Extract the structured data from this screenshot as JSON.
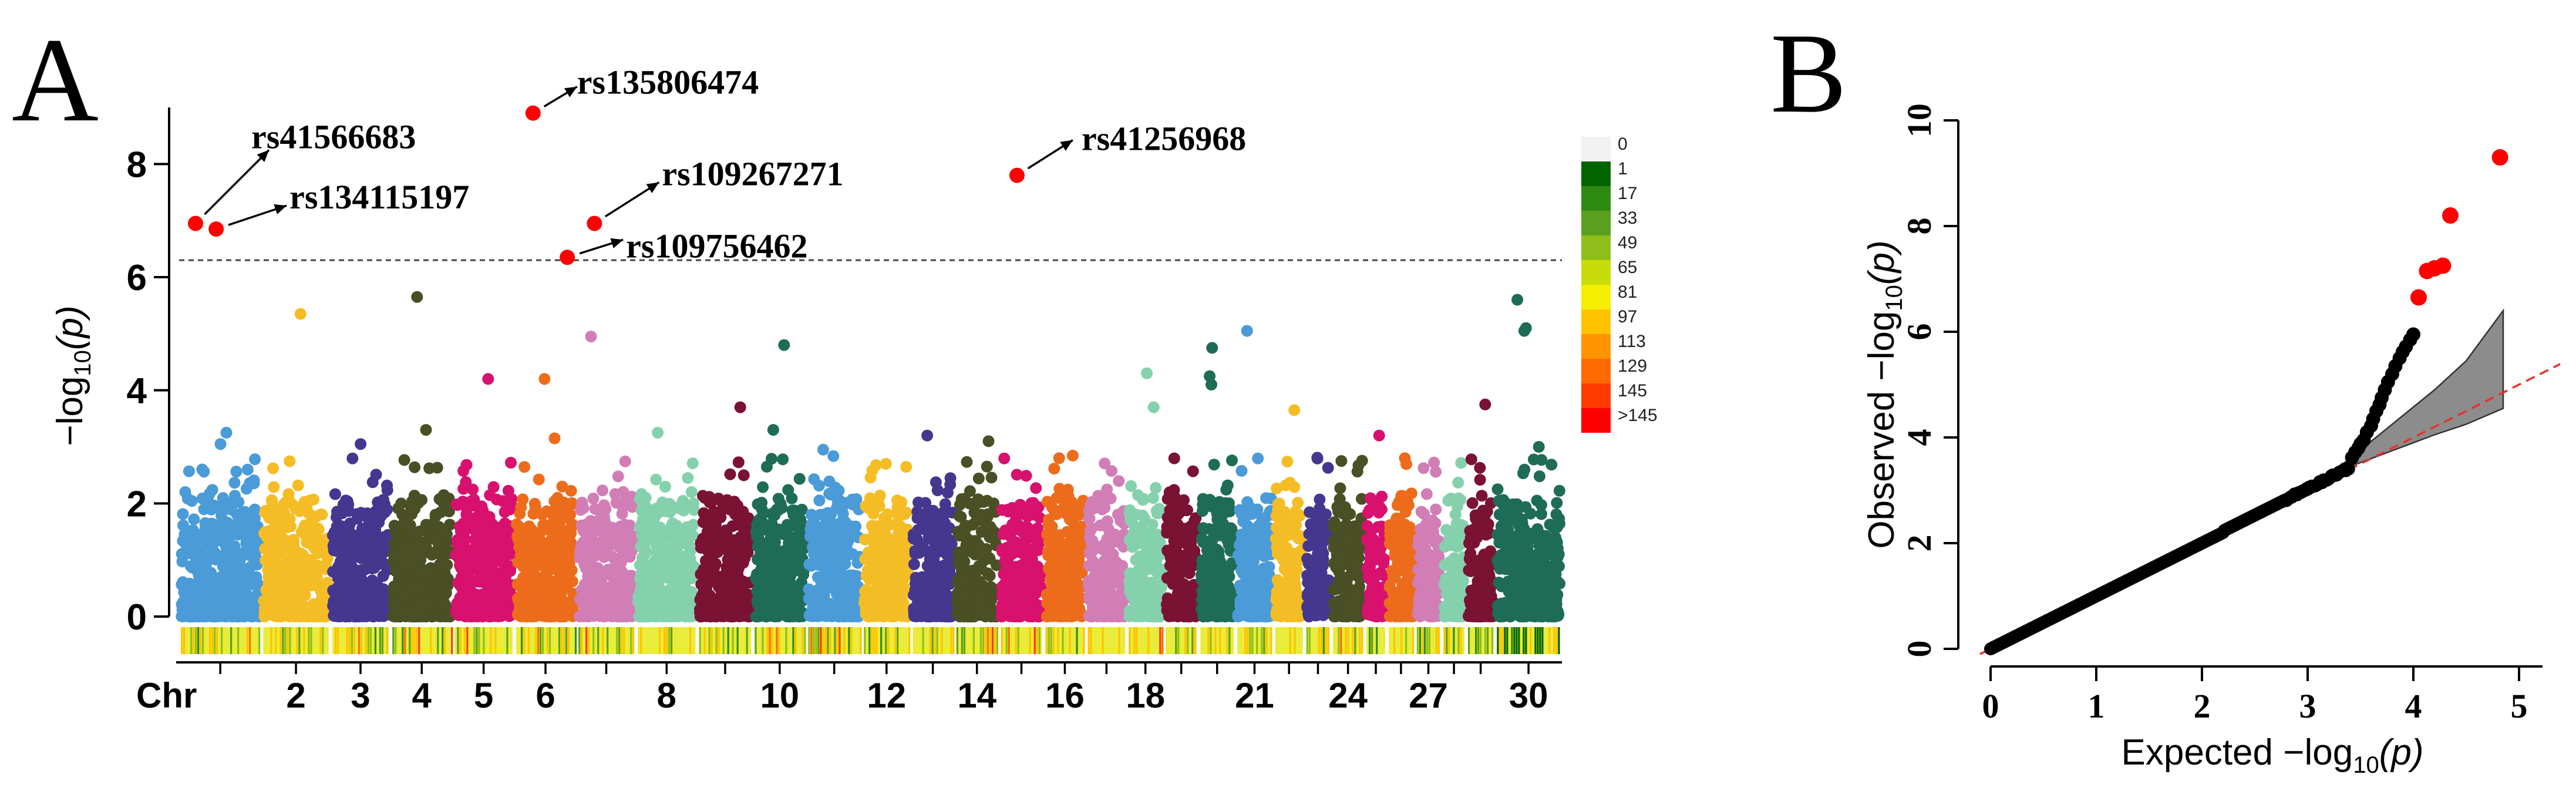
{
  "chart_data": [
    {
      "type": "scatter",
      "panel_label": "A",
      "title": "",
      "xlabel": "Chr",
      "ylabel_prefix": "−log",
      "ylabel_sub": "10",
      "ylabel_suffix": "(p)",
      "ylim": [
        0,
        9
      ],
      "yticks": [
        0,
        2,
        4,
        6,
        8
      ],
      "threshold": 6.3,
      "chromosomes": [
        {
          "chr": 1,
          "label": "",
          "width": 1.85,
          "color": "#4a9bd8"
        },
        {
          "chr": 2,
          "label": "2",
          "width": 1.55,
          "color": "#f5bd25"
        },
        {
          "chr": 3,
          "label": "3",
          "width": 1.35,
          "color": "#45378f"
        },
        {
          "chr": 4,
          "label": "4",
          "width": 1.4,
          "color": "#4a4f25"
        },
        {
          "chr": 5,
          "label": "5",
          "width": 1.38,
          "color": "#d8106e"
        },
        {
          "chr": 6,
          "label": "6",
          "width": 1.4,
          "color": "#ed6c1b"
        },
        {
          "chr": 7,
          "label": "",
          "width": 1.33,
          "color": "#d17eb7"
        },
        {
          "chr": 8,
          "label": "8",
          "width": 1.38,
          "color": "#85d1ad"
        },
        {
          "chr": 9,
          "label": "",
          "width": 1.25,
          "color": "#7a1233"
        },
        {
          "chr": 10,
          "label": "10",
          "width": 1.2,
          "color": "#1f6c56"
        },
        {
          "chr": 11,
          "label": "",
          "width": 1.25,
          "color": "#4a9bd8"
        },
        {
          "chr": 12,
          "label": "12",
          "width": 1.1,
          "color": "#f5bd25"
        },
        {
          "chr": 13,
          "label": "",
          "width": 0.98,
          "color": "#45378f"
        },
        {
          "chr": 14,
          "label": "14",
          "width": 1.0,
          "color": "#4a4f25"
        },
        {
          "chr": 15,
          "label": "",
          "width": 1.0,
          "color": "#d8106e"
        },
        {
          "chr": 16,
          "label": "16",
          "width": 0.95,
          "color": "#ed6c1b"
        },
        {
          "chr": 17,
          "label": "",
          "width": 0.92,
          "color": "#d17eb7"
        },
        {
          "chr": 18,
          "label": "18",
          "width": 0.83,
          "color": "#85d1ad"
        },
        {
          "chr": 19,
          "label": "",
          "width": 0.78,
          "color": "#7a1233"
        },
        {
          "chr": 20,
          "label": "",
          "width": 0.83,
          "color": "#1f6c56"
        },
        {
          "chr": 21,
          "label": "21",
          "width": 0.85,
          "color": "#4a9bd8"
        },
        {
          "chr": 22,
          "label": "",
          "width": 0.7,
          "color": "#f5bd25"
        },
        {
          "chr": 23,
          "label": "",
          "width": 0.6,
          "color": "#45378f"
        },
        {
          "chr": 24,
          "label": "24",
          "width": 0.75,
          "color": "#4a4f25"
        },
        {
          "chr": 25,
          "label": "",
          "width": 0.5,
          "color": "#d8106e"
        },
        {
          "chr": 26,
          "label": "",
          "width": 0.63,
          "color": "#ed6c1b"
        },
        {
          "chr": 27,
          "label": "27",
          "width": 0.6,
          "color": "#d17eb7"
        },
        {
          "chr": 28,
          "label": "",
          "width": 0.55,
          "color": "#85d1ad"
        },
        {
          "chr": 29,
          "label": "",
          "width": 0.65,
          "color": "#7a1233"
        },
        {
          "chr": 30,
          "label": "30",
          "width": 1.5,
          "color": "#1f6c56"
        }
      ],
      "noise_extra_points": [
        {
          "chr": 1,
          "y": 3.05
        },
        {
          "chr": 1,
          "y": 3.25
        },
        {
          "chr": 2,
          "y": 5.35
        },
        {
          "chr": 3,
          "y": 3.05
        },
        {
          "chr": 4,
          "y": 5.65
        },
        {
          "chr": 4,
          "y": 3.3
        },
        {
          "chr": 5,
          "y": 4.2
        },
        {
          "chr": 6,
          "y": 4.2
        },
        {
          "chr": 6,
          "y": 3.15
        },
        {
          "chr": 7,
          "y": 4.95
        },
        {
          "chr": 8,
          "y": 3.25
        },
        {
          "chr": 9,
          "y": 3.7
        },
        {
          "chr": 10,
          "y": 4.8
        },
        {
          "chr": 10,
          "y": 3.3
        },
        {
          "chr": 11,
          "y": 2.95
        },
        {
          "chr": 13,
          "y": 3.2
        },
        {
          "chr": 14,
          "y": 3.1
        },
        {
          "chr": 16,
          "y": 2.8
        },
        {
          "chr": 18,
          "y": 4.3
        },
        {
          "chr": 18,
          "y": 3.7
        },
        {
          "chr": 20,
          "y": 4.75
        },
        {
          "chr": 20,
          "y": 4.25
        },
        {
          "chr": 20,
          "y": 4.1
        },
        {
          "chr": 21,
          "y": 5.05
        },
        {
          "chr": 22,
          "y": 3.65
        },
        {
          "chr": 24,
          "y": 2.75
        },
        {
          "chr": 25,
          "y": 3.2
        },
        {
          "chr": 26,
          "y": 2.8
        },
        {
          "chr": 29,
          "y": 3.75
        },
        {
          "chr": 30,
          "y": 5.1
        },
        {
          "chr": 30,
          "y": 5.05
        },
        {
          "chr": 30,
          "y": 5.6
        },
        {
          "chr": 30,
          "y": 3.0
        }
      ],
      "significant_snps": [
        {
          "name": "rs41566683",
          "chr": 1,
          "pos": 0.2,
          "y": 6.95
        },
        {
          "name": "rs134115197",
          "chr": 1,
          "pos": 0.45,
          "y": 6.85
        },
        {
          "name": "rs135806474",
          "chr": 6,
          "pos": 0.3,
          "y": 8.9
        },
        {
          "name": "rs109267271",
          "chr": 7,
          "pos": 0.3,
          "y": 6.95
        },
        {
          "name": "rs109756462",
          "chr": 6,
          "pos": 0.85,
          "y": 6.35
        },
        {
          "name": "rs41256968",
          "chr": 15,
          "pos": 0.4,
          "y": 7.8
        }
      ],
      "legend_title": "",
      "legend": [
        "0",
        "1",
        "17",
        "33",
        "49",
        "65",
        "81",
        "97",
        "113",
        "129",
        "145",
        ">145"
      ],
      "legend_colors": [
        "#f2f2f2",
        "#006400",
        "#2f8a12",
        "#5aa01e",
        "#8fbe1a",
        "#c8dc0a",
        "#f4ee00",
        "#ffc300",
        "#ff9400",
        "#ff6a00",
        "#ff3b00",
        "#ff0000"
      ]
    },
    {
      "type": "scatter",
      "panel_label": "B",
      "xlabel_prefix": "Expected  −log",
      "xlabel_sub": "10",
      "xlabel_suffix": "(p)",
      "ylabel_prefix": "Observed  −log",
      "ylabel_sub": "10",
      "ylabel_suffix": "(p)",
      "xlim": [
        0,
        5
      ],
      "ylim": [
        0,
        10
      ],
      "xticks": [
        0,
        1,
        2,
        3,
        4,
        5
      ],
      "yticks": [
        0,
        2,
        4,
        6,
        8,
        10
      ],
      "linear_range": [
        0,
        3.4
      ],
      "tail_points": [
        [
          3.42,
          3.62
        ],
        [
          3.45,
          3.72
        ],
        [
          3.48,
          3.8
        ],
        [
          3.5,
          3.88
        ],
        [
          3.53,
          3.95
        ],
        [
          3.56,
          4.1
        ],
        [
          3.6,
          4.22
        ],
        [
          3.62,
          4.35
        ],
        [
          3.65,
          4.5
        ],
        [
          3.68,
          4.62
        ],
        [
          3.7,
          4.75
        ],
        [
          3.73,
          4.9
        ],
        [
          3.76,
          5.05
        ],
        [
          3.8,
          5.2
        ],
        [
          3.83,
          5.35
        ],
        [
          3.87,
          5.5
        ],
        [
          3.9,
          5.62
        ],
        [
          3.93,
          5.72
        ],
        [
          3.97,
          5.85
        ],
        [
          4.0,
          5.95
        ]
      ],
      "significant_points": [
        [
          4.05,
          6.65
        ],
        [
          4.13,
          7.15
        ],
        [
          4.2,
          7.2
        ],
        [
          4.28,
          7.25
        ],
        [
          4.35,
          8.2
        ],
        [
          4.82,
          9.3
        ]
      ],
      "confidence_band_upper": [
        [
          3.4,
          3.6
        ],
        [
          3.8,
          4.25
        ],
        [
          4.2,
          4.9
        ],
        [
          4.5,
          5.45
        ],
        [
          4.85,
          6.4
        ]
      ],
      "confidence_band_lower": [
        [
          3.4,
          3.45
        ],
        [
          3.8,
          3.75
        ],
        [
          4.2,
          4.05
        ],
        [
          4.5,
          4.25
        ],
        [
          4.85,
          4.55
        ]
      ]
    }
  ]
}
